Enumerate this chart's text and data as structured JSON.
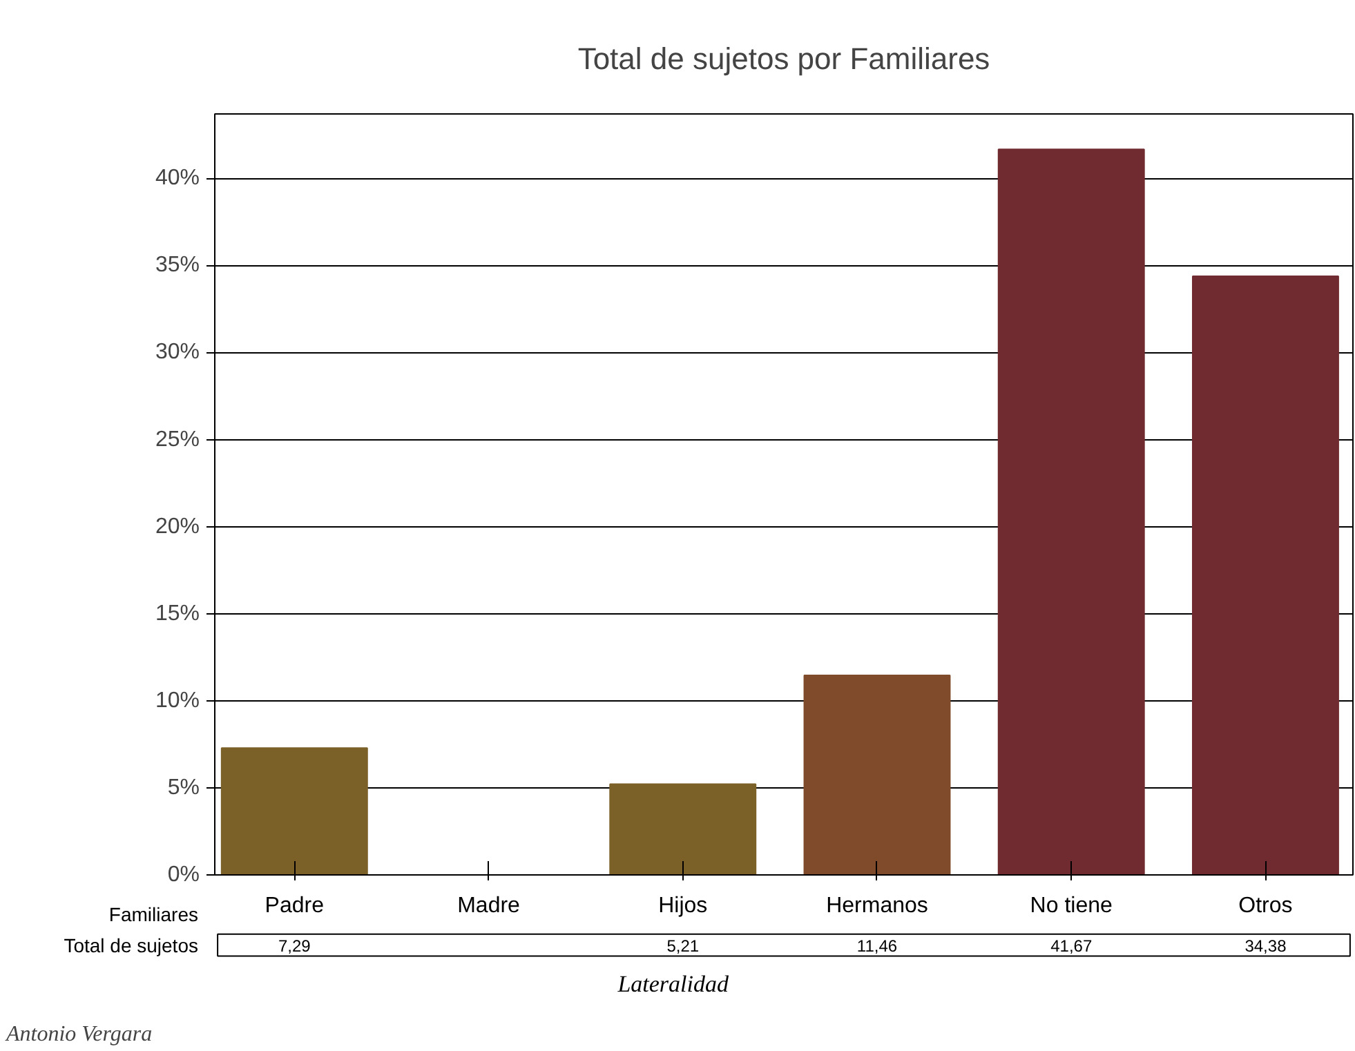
{
  "chart_data": {
    "type": "bar",
    "title": "Total de sujetos por Familiares",
    "xlabel": "Lateralidad",
    "categories": [
      "Padre",
      "Madre",
      "Hijos",
      "Hermanos",
      "No tiene",
      "Otros"
    ],
    "values": [
      7.29,
      null,
      5.21,
      11.46,
      41.67,
      34.38
    ],
    "value_labels": [
      "7,29",
      null,
      "5,21",
      "11,46",
      "41,67",
      "34,38"
    ],
    "colors": [
      "#7b6128",
      "#7b6128",
      "#7b6128",
      "#7f4b2b",
      "#6f2b2f",
      "#6f2b2f"
    ],
    "ylim": [
      0,
      43.7
    ],
    "yticks": [
      {
        "value": 0,
        "label": "0%"
      },
      {
        "value": 5,
        "label": "5%"
      },
      {
        "value": 10,
        "label": "10%"
      },
      {
        "value": 15,
        "label": "15%"
      },
      {
        "value": 20,
        "label": "20%"
      },
      {
        "value": 25,
        "label": "25%"
      },
      {
        "value": 30,
        "label": "30%"
      },
      {
        "value": 35,
        "label": "35%"
      },
      {
        "value": 40,
        "label": "40%"
      }
    ],
    "grid": "y",
    "legend": false,
    "annotations": [
      "Familiares",
      "Total de sujetos",
      "Antonio Vergara"
    ]
  }
}
